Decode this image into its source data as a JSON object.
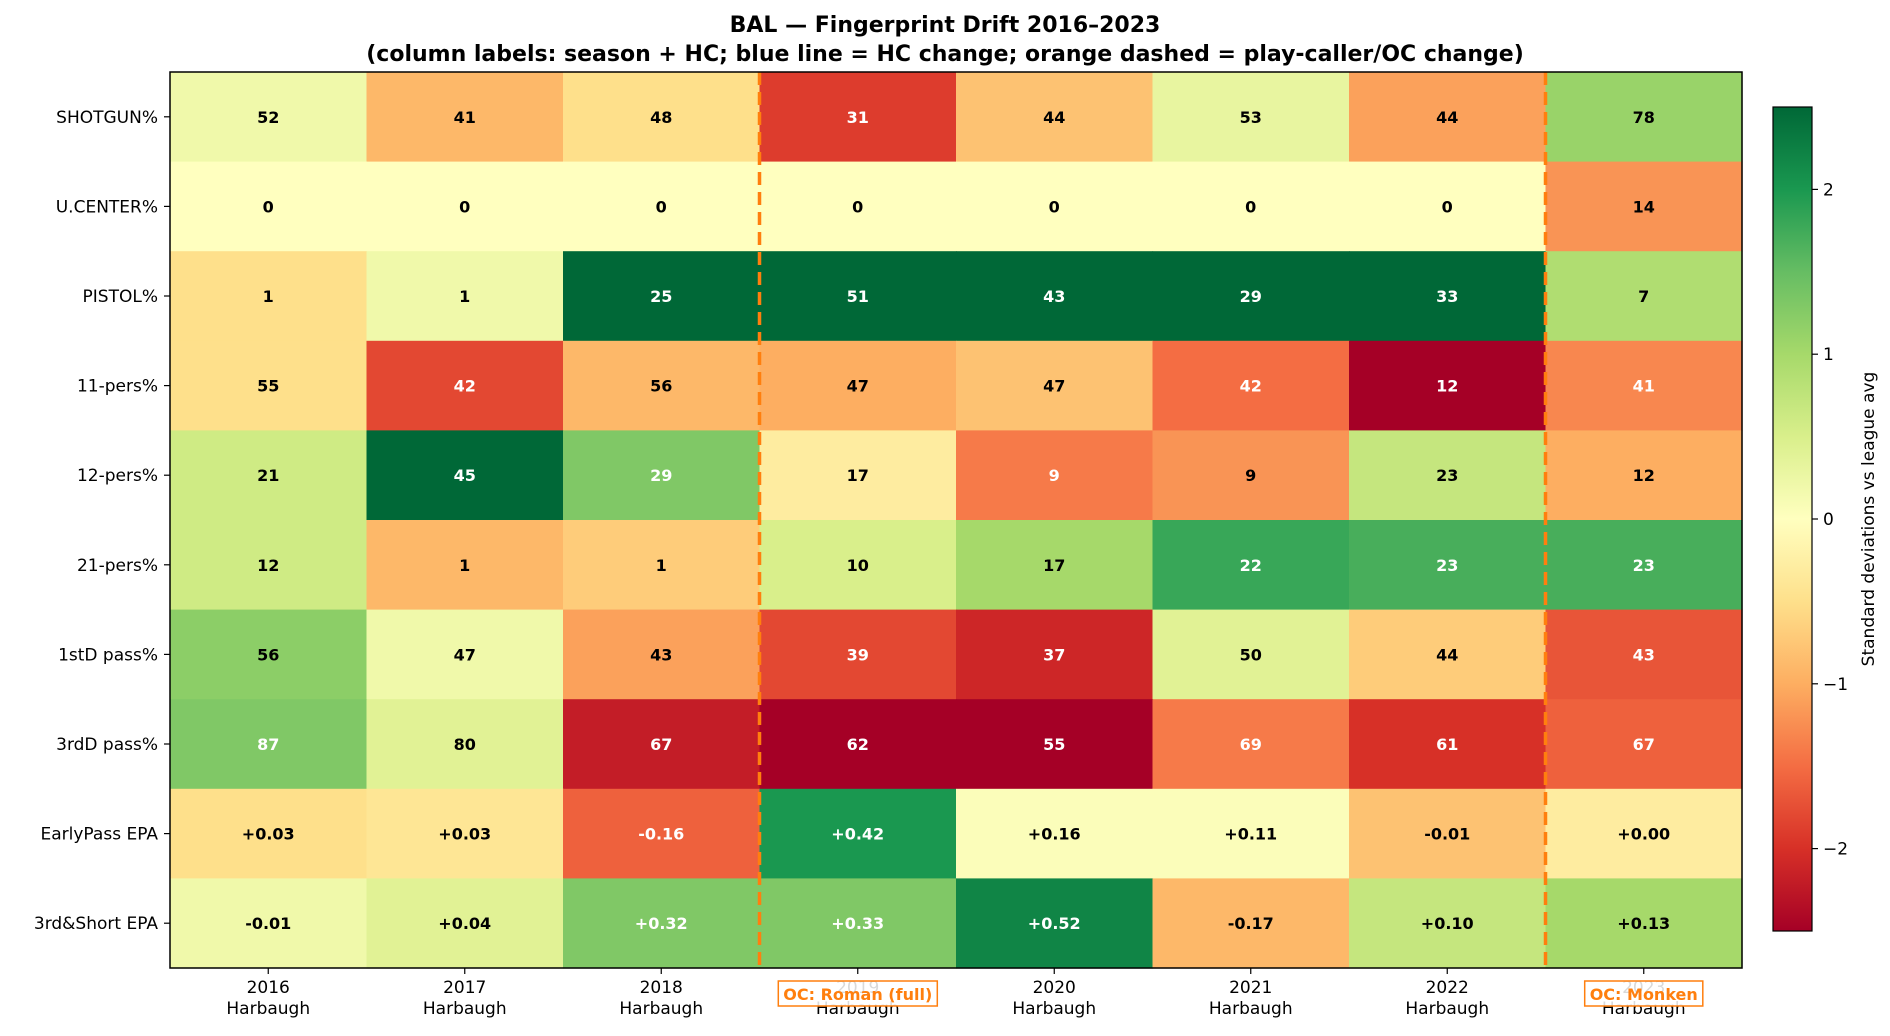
{
  "chart_data": {
    "type": "heatmap",
    "title": "BAL — Fingerprint Drift 2016–2023",
    "subtitle": "(column labels: season + HC; blue line = HC change; orange dashed = play-caller/OC change)",
    "columns": [
      {
        "season": "2016",
        "hc": "Harbaugh"
      },
      {
        "season": "2017",
        "hc": "Harbaugh"
      },
      {
        "season": "2018",
        "hc": "Harbaugh"
      },
      {
        "season": "2019",
        "hc": "Harbaugh"
      },
      {
        "season": "2020",
        "hc": "Harbaugh"
      },
      {
        "season": "2021",
        "hc": "Harbaugh"
      },
      {
        "season": "2022",
        "hc": "Harbaugh"
      },
      {
        "season": "2023",
        "hc": "Harbaugh"
      }
    ],
    "rows": [
      "SHOTGUN%",
      "U.CENTER%",
      "PISTOL%",
      "11-pers%",
      "12-pers%",
      "21-pers%",
      "1stD pass%",
      "3rdD pass%",
      "EarlyPass EPA",
      "3rd&Short EPA"
    ],
    "labels": [
      [
        "52",
        "41",
        "48",
        "31",
        "44",
        "53",
        "44",
        "78"
      ],
      [
        "0",
        "0",
        "0",
        "0",
        "0",
        "0",
        "0",
        "14"
      ],
      [
        "1",
        "1",
        "25",
        "51",
        "43",
        "29",
        "33",
        "7"
      ],
      [
        "55",
        "42",
        "56",
        "47",
        "47",
        "42",
        "12",
        "41"
      ],
      [
        "21",
        "45",
        "29",
        "17",
        "9",
        "9",
        "23",
        "12"
      ],
      [
        "12",
        "1",
        "1",
        "10",
        "17",
        "22",
        "23",
        "23"
      ],
      [
        "56",
        "47",
        "43",
        "39",
        "37",
        "50",
        "44",
        "43"
      ],
      [
        "87",
        "80",
        "67",
        "62",
        "55",
        "69",
        "61",
        "67"
      ],
      [
        "+0.03",
        "+0.03",
        "-0.16",
        "+0.42",
        "+0.16",
        "+0.11",
        "-0.01",
        "+0.00"
      ],
      [
        "-0.01",
        "+0.04",
        "+0.32",
        "+0.33",
        "+0.52",
        "-0.17",
        "+0.10",
        "+0.13"
      ]
    ],
    "z": [
      [
        0.2,
        -0.9,
        -0.5,
        -1.9,
        -0.8,
        0.3,
        -1.1,
        1.1
      ],
      [
        0.0,
        0.0,
        0.0,
        0.0,
        0.0,
        0.0,
        0.0,
        -1.2
      ],
      [
        -0.5,
        0.2,
        2.5,
        2.5,
        2.5,
        2.5,
        2.5,
        0.9
      ],
      [
        -0.5,
        -1.8,
        -0.9,
        -1.0,
        -0.8,
        -1.5,
        -2.5,
        -1.3
      ],
      [
        0.6,
        2.5,
        1.3,
        -0.3,
        -1.4,
        -1.2,
        0.7,
        -1.0
      ],
      [
        0.6,
        -0.9,
        -0.7,
        0.5,
        1.0,
        1.8,
        1.7,
        1.7
      ],
      [
        1.2,
        0.2,
        -1.1,
        -1.8,
        -2.1,
        0.4,
        -0.7,
        -1.7
      ],
      [
        1.3,
        0.4,
        -2.2,
        -2.5,
        -2.5,
        -1.4,
        -2.0,
        -1.6
      ],
      [
        -0.5,
        -0.4,
        -1.6,
        2.0,
        0.05,
        0.05,
        -0.8,
        -0.3
      ],
      [
        0.2,
        0.4,
        1.3,
        1.3,
        2.2,
        -0.9,
        0.7,
        1.0
      ]
    ],
    "oc_changes": [
      {
        "before_column": 3,
        "label": "OC: Roman (full)"
      },
      {
        "before_column": 7,
        "label": "OC: Monken"
      }
    ],
    "colorbar": {
      "label": "Standard deviations vs league avg",
      "range": [
        -2.5,
        2.5
      ],
      "ticks": [
        "−2",
        "−1",
        "0",
        "1",
        "2"
      ],
      "tick_values": [
        -2,
        -1,
        0,
        1,
        2
      ]
    },
    "colors": {
      "oc_line": "#ff7f0e",
      "colormap": "RdYlGn"
    }
  }
}
